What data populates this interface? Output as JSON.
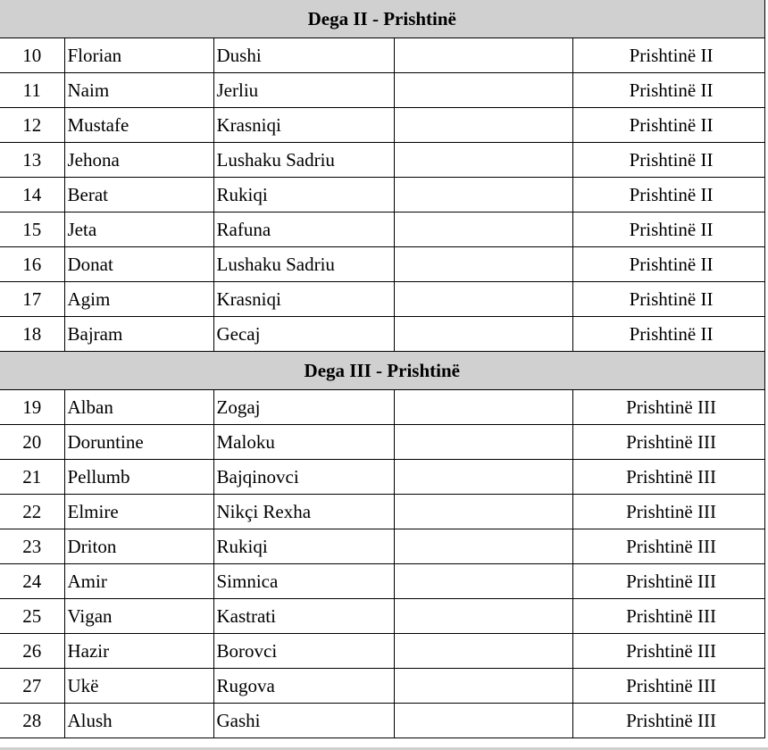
{
  "sections": [
    {
      "title": "Dega II - Prishtinë",
      "rows": [
        {
          "no": "10",
          "first": "Florian",
          "last": "Dushi",
          "extra": "",
          "branch": "Prishtinë II"
        },
        {
          "no": "11",
          "first": "Naim",
          "last": "Jerliu",
          "extra": "",
          "branch": "Prishtinë II"
        },
        {
          "no": "12",
          "first": "Mustafe",
          "last": "Krasniqi",
          "extra": "",
          "branch": "Prishtinë II"
        },
        {
          "no": "13",
          "first": "Jehona",
          "last": "Lushaku Sadriu",
          "extra": "",
          "branch": "Prishtinë II"
        },
        {
          "no": "14",
          "first": "Berat",
          "last": "Rukiqi",
          "extra": "",
          "branch": "Prishtinë II"
        },
        {
          "no": "15",
          "first": "Jeta",
          "last": "Rafuna",
          "extra": "",
          "branch": "Prishtinë II"
        },
        {
          "no": "16",
          "first": "Donat",
          "last": "Lushaku Sadriu",
          "extra": "",
          "branch": "Prishtinë II"
        },
        {
          "no": "17",
          "first": "Agim",
          "last": "Krasniqi",
          "extra": "",
          "branch": "Prishtinë II"
        },
        {
          "no": "18",
          "first": "Bajram",
          "last": "Gecaj",
          "extra": "",
          "branch": "Prishtinë II"
        }
      ]
    },
    {
      "title": "Dega III - Prishtinë",
      "rows": [
        {
          "no": "19",
          "first": "Alban",
          "last": "Zogaj",
          "extra": "",
          "branch": "Prishtinë III"
        },
        {
          "no": "20",
          "first": "Doruntine",
          "last": "Maloku",
          "extra": "",
          "branch": "Prishtinë III"
        },
        {
          "no": "21",
          "first": "Pellumb",
          "last": "Bajqinovci",
          "extra": "",
          "branch": "Prishtinë III"
        },
        {
          "no": "22",
          "first": "Elmire",
          "last": "Nikçi Rexha",
          "extra": "",
          "branch": "Prishtinë III"
        },
        {
          "no": "23",
          "first": "Driton",
          "last": "Rukiqi",
          "extra": "",
          "branch": "Prishtinë III"
        },
        {
          "no": "24",
          "first": "Amir",
          "last": "Simnica",
          "extra": "",
          "branch": "Prishtinë III"
        },
        {
          "no": "25",
          "first": "Vigan",
          "last": "Kastrati",
          "extra": "",
          "branch": "Prishtinë III"
        },
        {
          "no": "26",
          "first": "Hazir",
          "last": "Borovci",
          "extra": "",
          "branch": "Prishtinë III"
        },
        {
          "no": "27",
          "first": "Ukë",
          "last": "Rugova",
          "extra": "",
          "branch": "Prishtinë III"
        },
        {
          "no": "28",
          "first": "Alush",
          "last": "Gashi",
          "extra": "",
          "branch": "Prishtinë III"
        }
      ]
    }
  ]
}
